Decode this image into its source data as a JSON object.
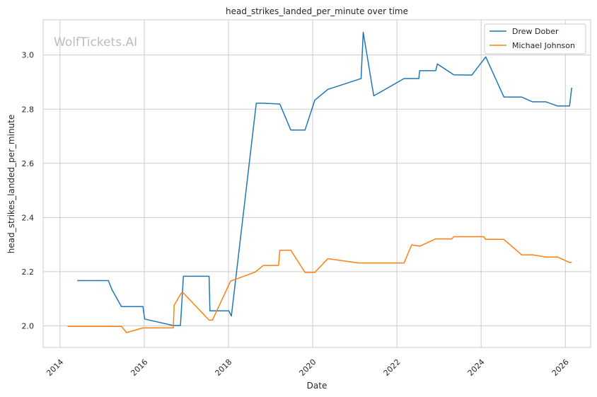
{
  "chart_data": {
    "type": "line",
    "title": "head_strikes_landed_per_minute over time",
    "xlabel": "Date",
    "ylabel": "head_strikes_landed_per_minute",
    "watermark": "WolfTickets.AI",
    "xlim": [
      2013.6,
      2026.6
    ],
    "ylim": [
      1.92,
      3.13
    ],
    "x_ticks": [
      2014,
      2016,
      2018,
      2020,
      2022,
      2024,
      2026
    ],
    "x_tick_labels": [
      "2014",
      "2016",
      "2018",
      "2020",
      "2022",
      "2024",
      "2026"
    ],
    "y_ticks": [
      2.0,
      2.2,
      2.4,
      2.6,
      2.8,
      3.0
    ],
    "y_tick_labels": [
      "2.0",
      "2.2",
      "2.4",
      "2.6",
      "2.8",
      "3.0"
    ],
    "grid": true,
    "legend_position": "top-right",
    "series": [
      {
        "name": "Drew Dober",
        "color": "#1f77b4",
        "x": [
          2014.41,
          2015.15,
          2015.23,
          2015.46,
          2015.97,
          2016.01,
          2016.69,
          2016.86,
          2016.93,
          2017.54,
          2017.56,
          2018.01,
          2018.07,
          2018.66,
          2018.83,
          2019.22,
          2019.48,
          2019.82,
          2020.05,
          2020.36,
          2021.15,
          2021.2,
          2021.45,
          2022.17,
          2022.52,
          2022.54,
          2022.92,
          2022.96,
          2023.35,
          2023.78,
          2024.11,
          2024.54,
          2024.96,
          2025.22,
          2025.54,
          2025.81,
          2026.1,
          2026.15
        ],
        "y": [
          2.167,
          2.167,
          2.135,
          2.071,
          2.071,
          2.025,
          2.001,
          2.001,
          2.183,
          2.183,
          2.055,
          2.055,
          2.036,
          2.822,
          2.822,
          2.819,
          2.723,
          2.723,
          2.833,
          2.873,
          2.913,
          3.084,
          2.849,
          2.913,
          2.913,
          2.942,
          2.942,
          2.967,
          2.927,
          2.926,
          2.993,
          2.845,
          2.845,
          2.827,
          2.827,
          2.812,
          2.812,
          2.879
        ]
      },
      {
        "name": "Michael Johnson",
        "color": "#ff7f0e",
        "x": [
          2014.18,
          2015.46,
          2015.58,
          2015.97,
          2016.69,
          2016.71,
          2016.88,
          2016.93,
          2017.54,
          2017.62,
          2018.05,
          2018.63,
          2018.83,
          2019.19,
          2019.22,
          2019.48,
          2019.82,
          2020.05,
          2020.36,
          2021.09,
          2021.55,
          2022.17,
          2022.35,
          2022.54,
          2022.92,
          2022.96,
          2023.3,
          2023.35,
          2023.63,
          2024.06,
          2024.11,
          2024.54,
          2024.96,
          2025.22,
          2025.54,
          2025.81,
          2026.1,
          2026.15
        ],
        "y": [
          1.998,
          1.998,
          1.975,
          1.992,
          1.992,
          2.076,
          2.121,
          2.121,
          2.021,
          2.021,
          2.165,
          2.198,
          2.223,
          2.223,
          2.279,
          2.279,
          2.197,
          2.197,
          2.248,
          2.232,
          2.232,
          2.232,
          2.299,
          2.294,
          2.321,
          2.321,
          2.321,
          2.329,
          2.329,
          2.329,
          2.319,
          2.319,
          2.262,
          2.262,
          2.254,
          2.254,
          2.234,
          2.234
        ]
      }
    ]
  }
}
